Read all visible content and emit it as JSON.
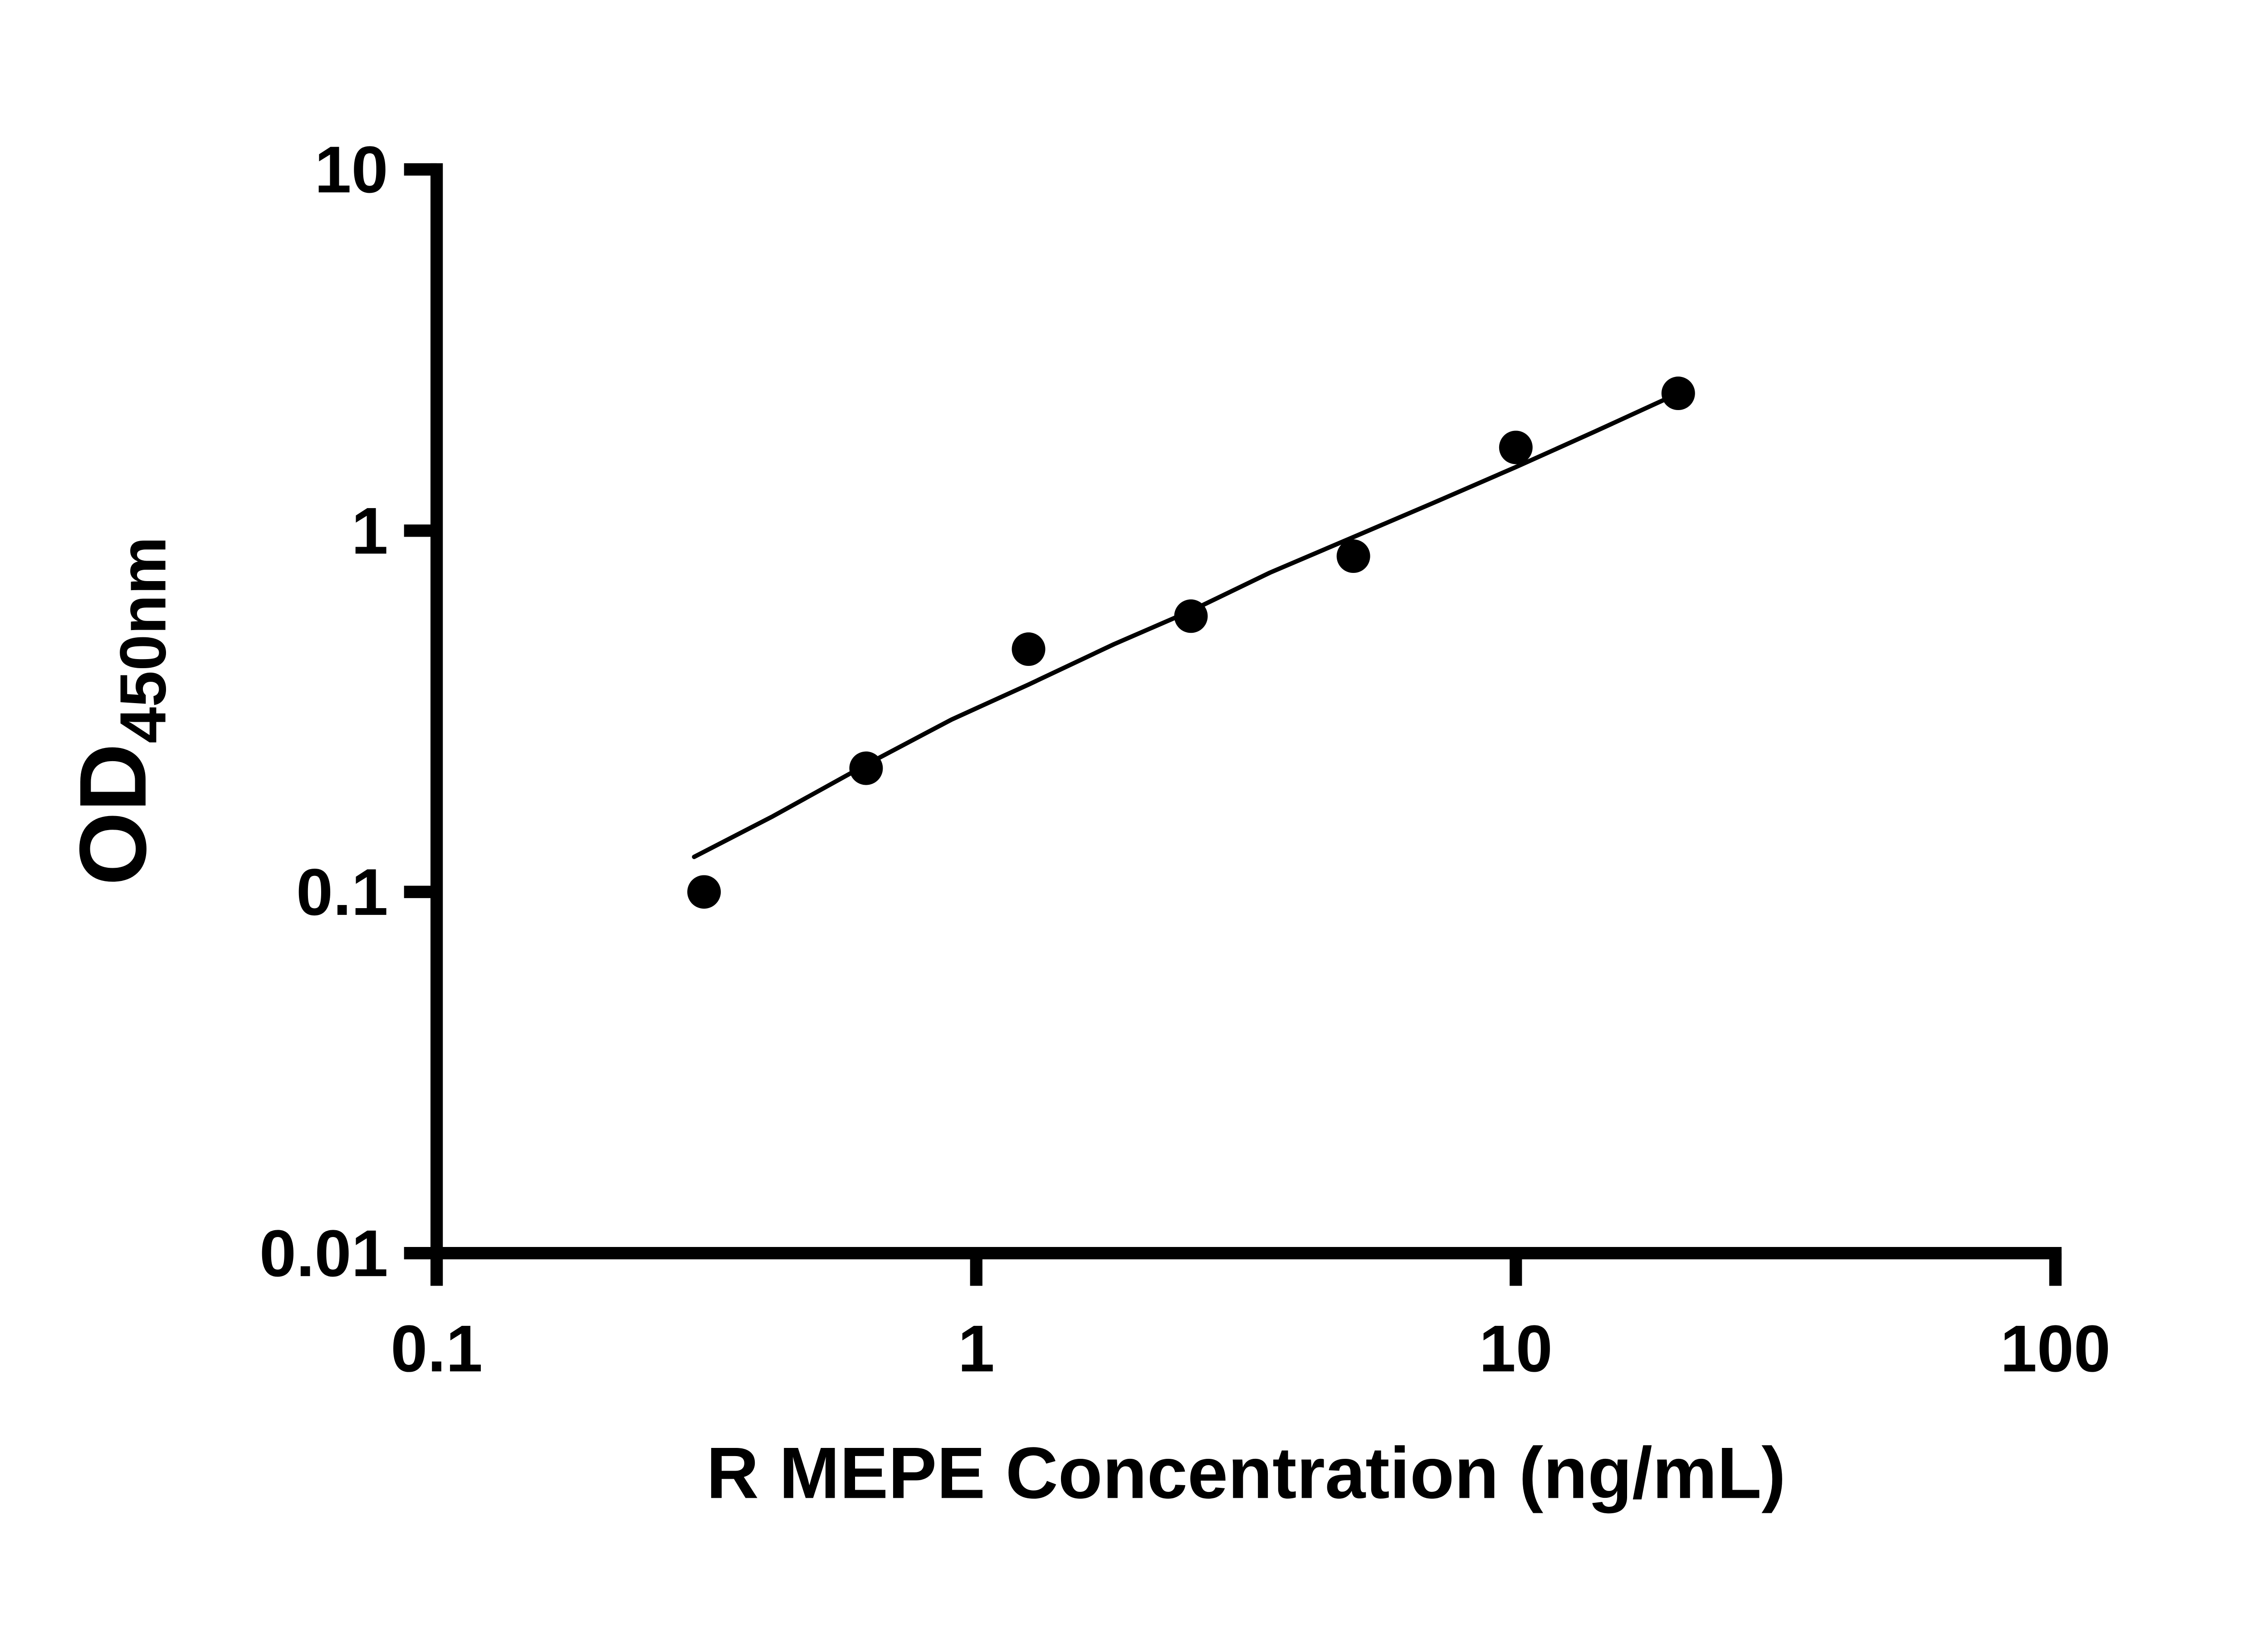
{
  "page": {
    "background": "#ffffff"
  },
  "chart_data": {
    "type": "scatter",
    "title": "",
    "xlabel": "R MEPE Concentration (ng/mL)",
    "ylabel_main": "OD",
    "ylabel_sub": "450nm",
    "x_scale": "log10",
    "y_scale": "log10",
    "xlim": [
      0.1,
      100
    ],
    "ylim": [
      0.01,
      10
    ],
    "grid": false,
    "legend": false,
    "x_ticks": [
      {
        "value": 0.1,
        "label": "0.1"
      },
      {
        "value": 1,
        "label": "1"
      },
      {
        "value": 10,
        "label": "10"
      },
      {
        "value": 100,
        "label": "100"
      }
    ],
    "y_ticks": [
      {
        "value": 0.01,
        "label": "0.01"
      },
      {
        "value": 0.1,
        "label": "0.1"
      },
      {
        "value": 1,
        "label": "1"
      },
      {
        "value": 10,
        "label": "10"
      }
    ],
    "points": [
      {
        "x": 0.313,
        "y": 0.1
      },
      {
        "x": 0.625,
        "y": 0.22
      },
      {
        "x": 1.25,
        "y": 0.47
      },
      {
        "x": 2.5,
        "y": 0.58
      },
      {
        "x": 5,
        "y": 0.85
      },
      {
        "x": 10,
        "y": 1.7
      },
      {
        "x": 20,
        "y": 2.4
      }
    ],
    "fit_curve": [
      [
        0.3,
        0.125
      ],
      [
        0.42,
        0.162
      ],
      [
        0.625,
        0.225
      ],
      [
        0.9,
        0.3
      ],
      [
        1.25,
        0.375
      ],
      [
        1.8,
        0.485
      ],
      [
        2.5,
        0.6
      ],
      [
        3.5,
        0.765
      ],
      [
        5.0,
        0.96
      ],
      [
        7.0,
        1.19
      ],
      [
        10.0,
        1.5
      ],
      [
        14.0,
        1.88
      ],
      [
        20.0,
        2.4
      ]
    ],
    "marker": "circle",
    "marker_color": "#000000",
    "line_color": "#000000",
    "axis_color": "#000000"
  }
}
